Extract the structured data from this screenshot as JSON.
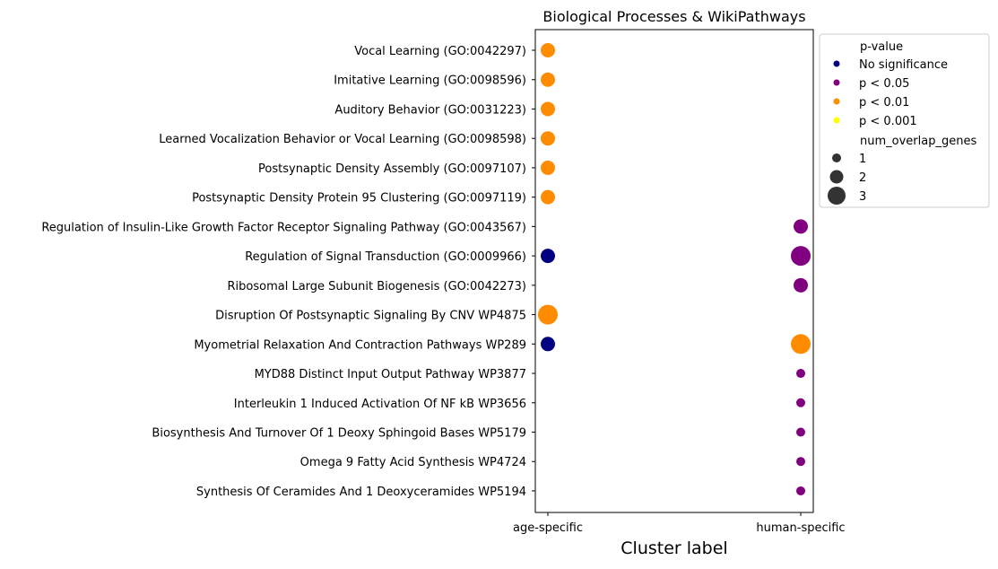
{
  "chart_data": {
    "type": "scatter",
    "title": "Biological Processes & WikiPathways",
    "xlabel": "Cluster label",
    "ylabel": "",
    "x_categories": [
      "age-specific",
      "human-specific"
    ],
    "y_categories": [
      "Vocal Learning (GO:0042297)",
      "Imitative Learning (GO:0098596)",
      "Auditory Behavior (GO:0031223)",
      "Learned Vocalization Behavior or Vocal Learning (GO:0098598)",
      "Postsynaptic Density Assembly (GO:0097107)",
      "Postsynaptic Density Protein 95 Clustering (GO:0097119)",
      "Regulation of Insulin-Like Growth Factor Receptor Signaling Pathway (GO:0043567)",
      "Regulation of Signal Transduction (GO:0009966)",
      "Ribosomal Large Subunit Biogenesis (GO:0042273)",
      "Disruption Of Postsynaptic Signaling By CNV WP4875",
      "Myometrial Relaxation And Contraction Pathways WP289",
      "MYD88 Distinct Input Output Pathway WP3877",
      "Interleukin 1 Induced Activation Of NF kB WP3656",
      "Biosynthesis And Turnover Of 1 Deoxy Sphingoid Bases WP5179",
      "Omega 9 Fatty Acid Synthesis WP4724",
      "Synthesis Of Ceramides And 1 Deoxyceramides WP5194"
    ],
    "points": [
      {
        "x": "age-specific",
        "y": "Vocal Learning (GO:0042297)",
        "significance": "p < 0.01",
        "num_overlap_genes": 2
      },
      {
        "x": "age-specific",
        "y": "Imitative Learning (GO:0098596)",
        "significance": "p < 0.01",
        "num_overlap_genes": 2
      },
      {
        "x": "age-specific",
        "y": "Auditory Behavior (GO:0031223)",
        "significance": "p < 0.01",
        "num_overlap_genes": 2
      },
      {
        "x": "age-specific",
        "y": "Learned Vocalization Behavior or Vocal Learning (GO:0098598)",
        "significance": "p < 0.01",
        "num_overlap_genes": 2
      },
      {
        "x": "age-specific",
        "y": "Postsynaptic Density Assembly (GO:0097107)",
        "significance": "p < 0.01",
        "num_overlap_genes": 2
      },
      {
        "x": "age-specific",
        "y": "Postsynaptic Density Protein 95 Clustering (GO:0097119)",
        "significance": "p < 0.01",
        "num_overlap_genes": 2
      },
      {
        "x": "human-specific",
        "y": "Regulation of Insulin-Like Growth Factor Receptor Signaling Pathway (GO:0043567)",
        "significance": "p < 0.05",
        "num_overlap_genes": 2
      },
      {
        "x": "age-specific",
        "y": "Regulation of Signal Transduction (GO:0009966)",
        "significance": "No significance",
        "num_overlap_genes": 2
      },
      {
        "x": "human-specific",
        "y": "Regulation of Signal Transduction (GO:0009966)",
        "significance": "p < 0.05",
        "num_overlap_genes": 3
      },
      {
        "x": "human-specific",
        "y": "Ribosomal Large Subunit Biogenesis (GO:0042273)",
        "significance": "p < 0.05",
        "num_overlap_genes": 2
      },
      {
        "x": "age-specific",
        "y": "Disruption Of Postsynaptic Signaling By CNV WP4875",
        "significance": "p < 0.01",
        "num_overlap_genes": 3
      },
      {
        "x": "age-specific",
        "y": "Myometrial Relaxation And Contraction Pathways WP289",
        "significance": "No significance",
        "num_overlap_genes": 2
      },
      {
        "x": "human-specific",
        "y": "Myometrial Relaxation And Contraction Pathways WP289",
        "significance": "p < 0.01",
        "num_overlap_genes": 3
      },
      {
        "x": "human-specific",
        "y": "MYD88 Distinct Input Output Pathway WP3877",
        "significance": "p < 0.05",
        "num_overlap_genes": 1
      },
      {
        "x": "human-specific",
        "y": "Interleukin 1 Induced Activation Of NF kB WP3656",
        "significance": "p < 0.05",
        "num_overlap_genes": 1
      },
      {
        "x": "human-specific",
        "y": "Biosynthesis And Turnover Of 1 Deoxy Sphingoid Bases WP5179",
        "significance": "p < 0.05",
        "num_overlap_genes": 1
      },
      {
        "x": "human-specific",
        "y": "Omega 9 Fatty Acid Synthesis WP4724",
        "significance": "p < 0.05",
        "num_overlap_genes": 1
      },
      {
        "x": "human-specific",
        "y": "Synthesis Of Ceramides And 1 Deoxyceramides WP5194",
        "significance": "p < 0.05",
        "num_overlap_genes": 1
      }
    ],
    "legend": {
      "placement": "outside-right",
      "hue_title": "p-value",
      "hue_items": [
        {
          "label": "No significance",
          "color": "#000080"
        },
        {
          "label": "p < 0.05",
          "color": "#800080"
        },
        {
          "label": "p < 0.01",
          "color": "#ff8c00"
        },
        {
          "label": "p < 0.001",
          "color": "#ffff00"
        }
      ],
      "size_title": "num_overlap_genes",
      "size_items": [
        {
          "label": "1",
          "value": 1
        },
        {
          "label": "2",
          "value": 2
        },
        {
          "label": "3",
          "value": 3
        }
      ]
    },
    "grid": false
  }
}
